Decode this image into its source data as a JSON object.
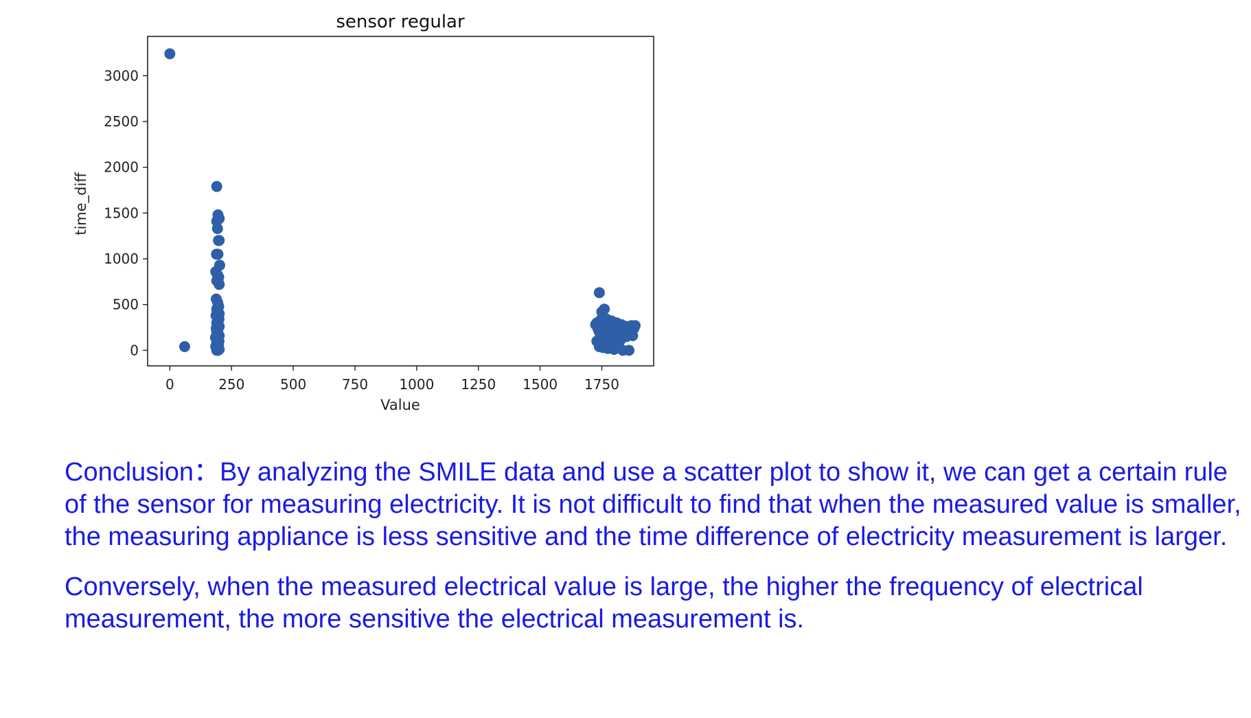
{
  "chart_data": {
    "type": "scatter",
    "title": "sensor regular",
    "xlabel": "Value",
    "ylabel": "time_diff",
    "xlim": [
      -90,
      1960
    ],
    "ylim": [
      -170,
      3430
    ],
    "xticks": [
      0,
      250,
      500,
      750,
      1000,
      1250,
      1500,
      1750
    ],
    "yticks": [
      0,
      500,
      1000,
      1500,
      2000,
      2500,
      3000
    ],
    "color": "#2e5fa8",
    "series": [
      {
        "name": "sensor",
        "x": [
          0,
          60,
          190,
          195,
          200,
          190,
          193,
          197,
          200,
          189,
          195,
          202,
          186,
          192,
          198,
          190,
          196,
          200,
          188,
          194,
          198,
          190,
          195,
          200,
          187,
          193,
          199,
          190,
          196,
          200,
          188,
          194,
          190,
          196,
          200,
          185,
          192,
          199,
          190,
          197,
          186,
          194,
          200,
          190,
          195,
          1740,
          1760,
          1750,
          1730,
          1725,
          1745,
          1770,
          1790,
          1810,
          1830,
          1850,
          1870,
          1885,
          1735,
          1755,
          1775,
          1795,
          1815,
          1840,
          1860,
          1880,
          1740,
          1760,
          1780,
          1800,
          1820,
          1745,
          1765,
          1785,
          1805,
          1825,
          1850,
          1875,
          1730,
          1750,
          1770,
          1790,
          1810,
          1740,
          1755,
          1775,
          1800,
          1835,
          1860,
          1740,
          1765,
          1790,
          1820,
          1745,
          1775,
          1805
        ],
        "y": [
          3240,
          40,
          1790,
          1480,
          1440,
          1410,
          1330,
          1200,
          1200,
          1050,
          1050,
          930,
          860,
          830,
          800,
          760,
          750,
          720,
          560,
          520,
          480,
          450,
          420,
          400,
          380,
          360,
          340,
          300,
          280,
          260,
          240,
          220,
          200,
          180,
          160,
          140,
          120,
          100,
          80,
          60,
          40,
          20,
          10,
          0,
          0,
          630,
          450,
          420,
          300,
          280,
          260,
          340,
          320,
          300,
          280,
          260,
          270,
          270,
          230,
          240,
          250,
          220,
          210,
          230,
          250,
          240,
          200,
          190,
          180,
          170,
          160,
          150,
          140,
          130,
          120,
          110,
          150,
          160,
          100,
          90,
          80,
          70,
          60,
          40,
          30,
          20,
          10,
          0,
          0,
          60,
          50,
          40,
          30,
          330,
          280,
          260
        ]
      }
    ]
  },
  "conclusion": {
    "paragraph1": "Conclusion：By analyzing the SMILE data and use a scatter plot to show it, we can get a certain rule of the sensor for measuring electricity. It is not difficult to find that when the measured value is smaller, the measuring appliance is less sensitive and the time difference of electricity measurement is larger.",
    "paragraph2": "Conversely, when the measured electrical value is large, the higher the frequency of electrical measurement, the more sensitive the electrical measurement is."
  }
}
